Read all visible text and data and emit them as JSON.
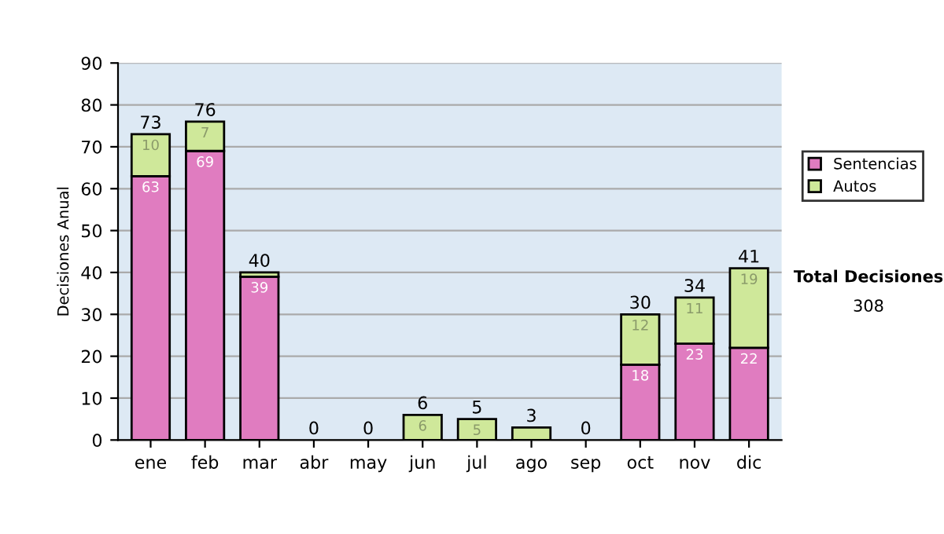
{
  "chart_data": {
    "type": "bar",
    "stacked": true,
    "ylabel": "Decisiones Anual",
    "categories": [
      "ene",
      "feb",
      "mar",
      "abr",
      "may",
      "jun",
      "jul",
      "ago",
      "sep",
      "oct",
      "nov",
      "dic"
    ],
    "series": [
      {
        "name": "Sentencias",
        "color": "#e07cc0",
        "values": [
          63,
          69,
          39,
          0,
          0,
          0,
          0,
          0,
          0,
          18,
          23,
          22
        ],
        "value_labels": [
          "63",
          "69",
          "39",
          null,
          null,
          null,
          null,
          null,
          null,
          "18",
          "23",
          "22"
        ]
      },
      {
        "name": "Autos",
        "color": "#cfe89a",
        "values": [
          10,
          7,
          1,
          0,
          0,
          6,
          5,
          3,
          0,
          12,
          11,
          19
        ],
        "value_labels": [
          "10",
          "7",
          null,
          null,
          null,
          "6",
          "5",
          null,
          null,
          "12",
          "11",
          "19"
        ]
      }
    ],
    "totals": [
      "73",
      "76",
      "40",
      "0",
      "0",
      "6",
      "5",
      "3",
      "0",
      "30",
      "34",
      "41"
    ],
    "ylim": [
      0,
      90
    ],
    "yticks": [
      0,
      10,
      20,
      30,
      40,
      50,
      60,
      70,
      80,
      90
    ],
    "grid": "y",
    "legend": "right",
    "annotations": [
      "Total Decisiones",
      "308"
    ]
  }
}
